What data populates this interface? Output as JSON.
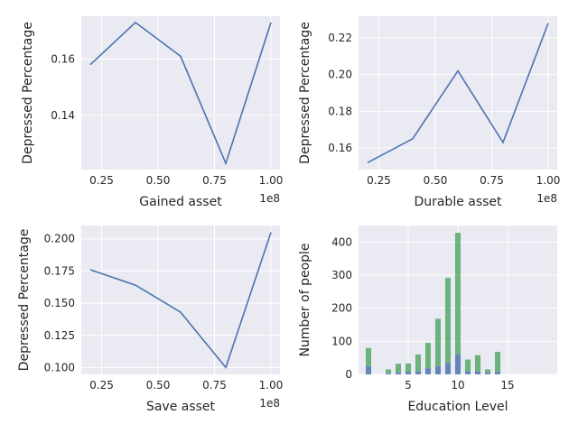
{
  "chart_data": [
    {
      "type": "line",
      "xlabel": "Gained asset",
      "ylabel": "Depressed Percentage",
      "x_offset_label": "1e8",
      "x": [
        0.2,
        0.4,
        0.6,
        0.8,
        1.0
      ],
      "y": [
        0.158,
        0.173,
        0.161,
        0.123,
        0.173
      ],
      "xticks": [
        0.25,
        0.5,
        0.75,
        1.0
      ],
      "xtick_labels": [
        "0.25",
        "0.50",
        "0.75",
        "1.00"
      ],
      "yticks": [
        0.14,
        0.16
      ],
      "ytick_labels": [
        "0.14",
        "0.16"
      ],
      "xlim": [
        0.16,
        1.04
      ],
      "ylim": [
        0.1208,
        0.1752
      ],
      "color": "#4c72b0",
      "grid": true
    },
    {
      "type": "line",
      "xlabel": "Durable asset",
      "ylabel": "Depressed Percentage",
      "x_offset_label": "1e8",
      "x": [
        0.2,
        0.4,
        0.6,
        0.8,
        1.0
      ],
      "y": [
        0.152,
        0.165,
        0.202,
        0.163,
        0.228
      ],
      "xticks": [
        0.25,
        0.5,
        0.75,
        1.0
      ],
      "xtick_labels": [
        "0.25",
        "0.50",
        "0.75",
        "1.00"
      ],
      "yticks": [
        0.16,
        0.18,
        0.2,
        0.22
      ],
      "ytick_labels": [
        "0.16",
        "0.18",
        "0.20",
        "0.22"
      ],
      "xlim": [
        0.16,
        1.04
      ],
      "ylim": [
        0.1482,
        0.2318
      ],
      "color": "#4c72b0",
      "grid": true
    },
    {
      "type": "line",
      "xlabel": "Save asset",
      "ylabel": "Depressed Percentage",
      "x_offset_label": "1e8",
      "x": [
        0.2,
        0.4,
        0.6,
        0.8,
        1.0
      ],
      "y": [
        0.176,
        0.164,
        0.143,
        0.1,
        0.205
      ],
      "xticks": [
        0.25,
        0.5,
        0.75,
        1.0
      ],
      "xtick_labels": [
        "0.25",
        "0.50",
        "0.75",
        "1.00"
      ],
      "yticks": [
        0.1,
        0.125,
        0.15,
        0.175,
        0.2
      ],
      "ytick_labels": [
        "0.100",
        "0.125",
        "0.150",
        "0.175",
        "0.200"
      ],
      "xlim": [
        0.16,
        1.04
      ],
      "ylim": [
        0.0947,
        0.2103
      ],
      "color": "#4c72b0",
      "grid": true
    },
    {
      "type": "bar",
      "stacked": true,
      "xlabel": "Education Level",
      "ylabel": "Number of people",
      "categories": [
        1,
        3,
        4,
        5,
        6,
        7,
        8,
        9,
        10,
        11,
        12,
        13,
        14
      ],
      "series": [
        {
          "color": "#4c72b0",
          "values": [
            25,
            3,
            5,
            8,
            10,
            18,
            25,
            35,
            60,
            10,
            10,
            5,
            8
          ]
        },
        {
          "color": "#55a868",
          "values": [
            55,
            12,
            27,
            25,
            50,
            77,
            143,
            257,
            368,
            35,
            48,
            10,
            60
          ]
        }
      ],
      "xticks": [
        5,
        10,
        15
      ],
      "xtick_labels": [
        "5",
        "10",
        "15"
      ],
      "yticks": [
        0,
        100,
        200,
        300,
        400
      ],
      "ytick_labels": [
        "0",
        "100",
        "200",
        "300",
        "400"
      ],
      "xlim": [
        0,
        20
      ],
      "ylim": [
        0,
        450
      ],
      "grid": true
    }
  ]
}
